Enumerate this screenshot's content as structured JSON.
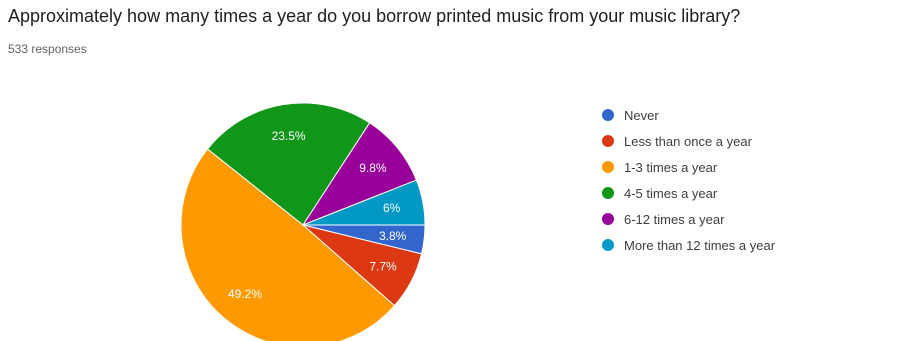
{
  "title": "Approximately how many times a year do you borrow printed music from your music library?",
  "responses": "533 responses",
  "chart_data": {
    "type": "pie",
    "labels": [
      "Never",
      "Less than once a year",
      "1-3 times a year",
      "4-5 times a year",
      "6-12 times a year",
      "More than 12 times a year"
    ],
    "values": [
      3.8,
      7.7,
      49.2,
      23.5,
      9.8,
      6
    ],
    "value_labels": [
      "3.8%",
      "7.7%",
      "49.2%",
      "23.5%",
      "9.8%",
      "6%"
    ],
    "colors": [
      "#3366cc",
      "#dc3912",
      "#ff9900",
      "#109618",
      "#990099",
      "#0099c6"
    ],
    "legend_position": "right"
  }
}
